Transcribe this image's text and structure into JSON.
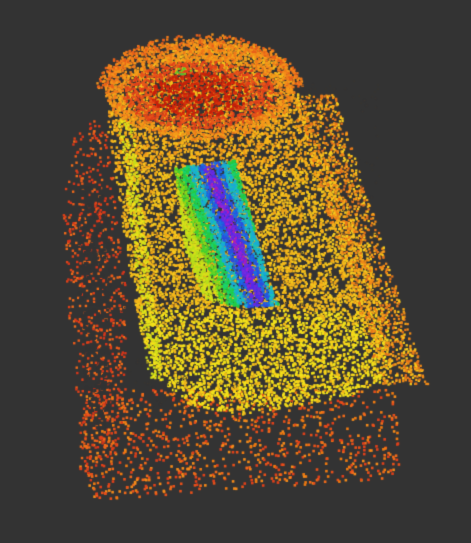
{
  "viewer": {
    "background_color": "#333333",
    "colormap": "height-jet",
    "colormap_stops": [
      "#b01a00",
      "#e03a10",
      "#f07a1a",
      "#f7a81a",
      "#f4d21a",
      "#e6e61a",
      "#9ee01a",
      "#22cc44",
      "#1aa8d8",
      "#2a4ee0",
      "#6a2ae0",
      "#b01ab8"
    ],
    "point_style": "square"
  }
}
